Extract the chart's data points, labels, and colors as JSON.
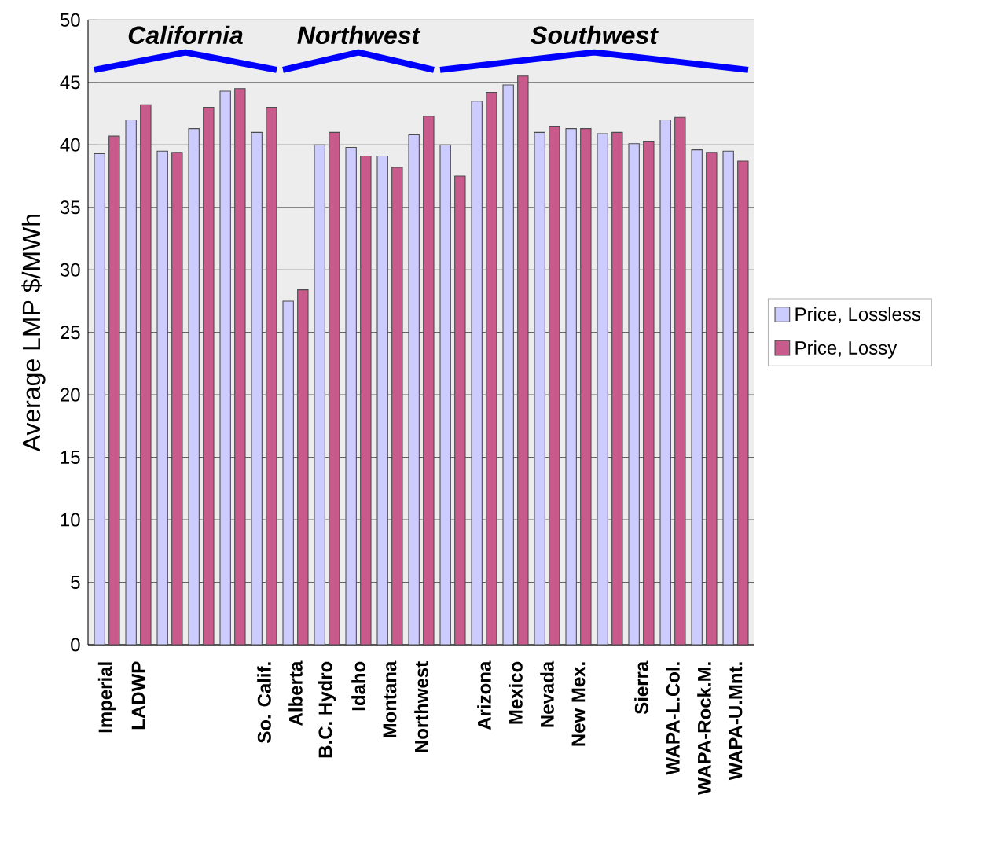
{
  "chart_data": {
    "type": "bar",
    "ylabel": "Average LMP $/MWh",
    "categories": [
      "Imperial",
      "LADWP",
      null,
      null,
      null,
      "So. Calif.",
      "Alberta",
      "B.C. Hydro",
      "Idaho",
      "Montana",
      "Northwest",
      null,
      "Arizona",
      "Mexico",
      "Nevada",
      "New Mex.",
      null,
      "Sierra",
      "WAPA-L.Col.",
      "WAPA-Rock.M.",
      "WAPA-U.Mnt."
    ],
    "series": [
      {
        "name": "Price, Lossless",
        "color": "#ccccff",
        "values": [
          39.3,
          42.0,
          39.5,
          41.3,
          44.3,
          41.0,
          27.5,
          40.0,
          39.8,
          39.1,
          40.8,
          40.0,
          43.5,
          44.8,
          41.0,
          41.3,
          40.9,
          40.1,
          42.0,
          39.6,
          39.5
        ]
      },
      {
        "name": "Price, Lossy",
        "color": "#c85a8c",
        "values": [
          40.7,
          43.2,
          39.4,
          43.0,
          44.5,
          43.0,
          28.4,
          41.0,
          39.1,
          38.2,
          42.3,
          37.5,
          44.2,
          45.5,
          41.5,
          41.3,
          41.0,
          40.3,
          42.2,
          39.4,
          38.7
        ]
      }
    ],
    "ylim": [
      0,
      50
    ],
    "yticks": [
      0,
      5,
      10,
      15,
      20,
      25,
      30,
      35,
      40,
      45,
      50
    ],
    "grid": "y",
    "legend": "right",
    "annotations": [
      "California",
      "Northwest",
      "Southwest"
    ]
  }
}
